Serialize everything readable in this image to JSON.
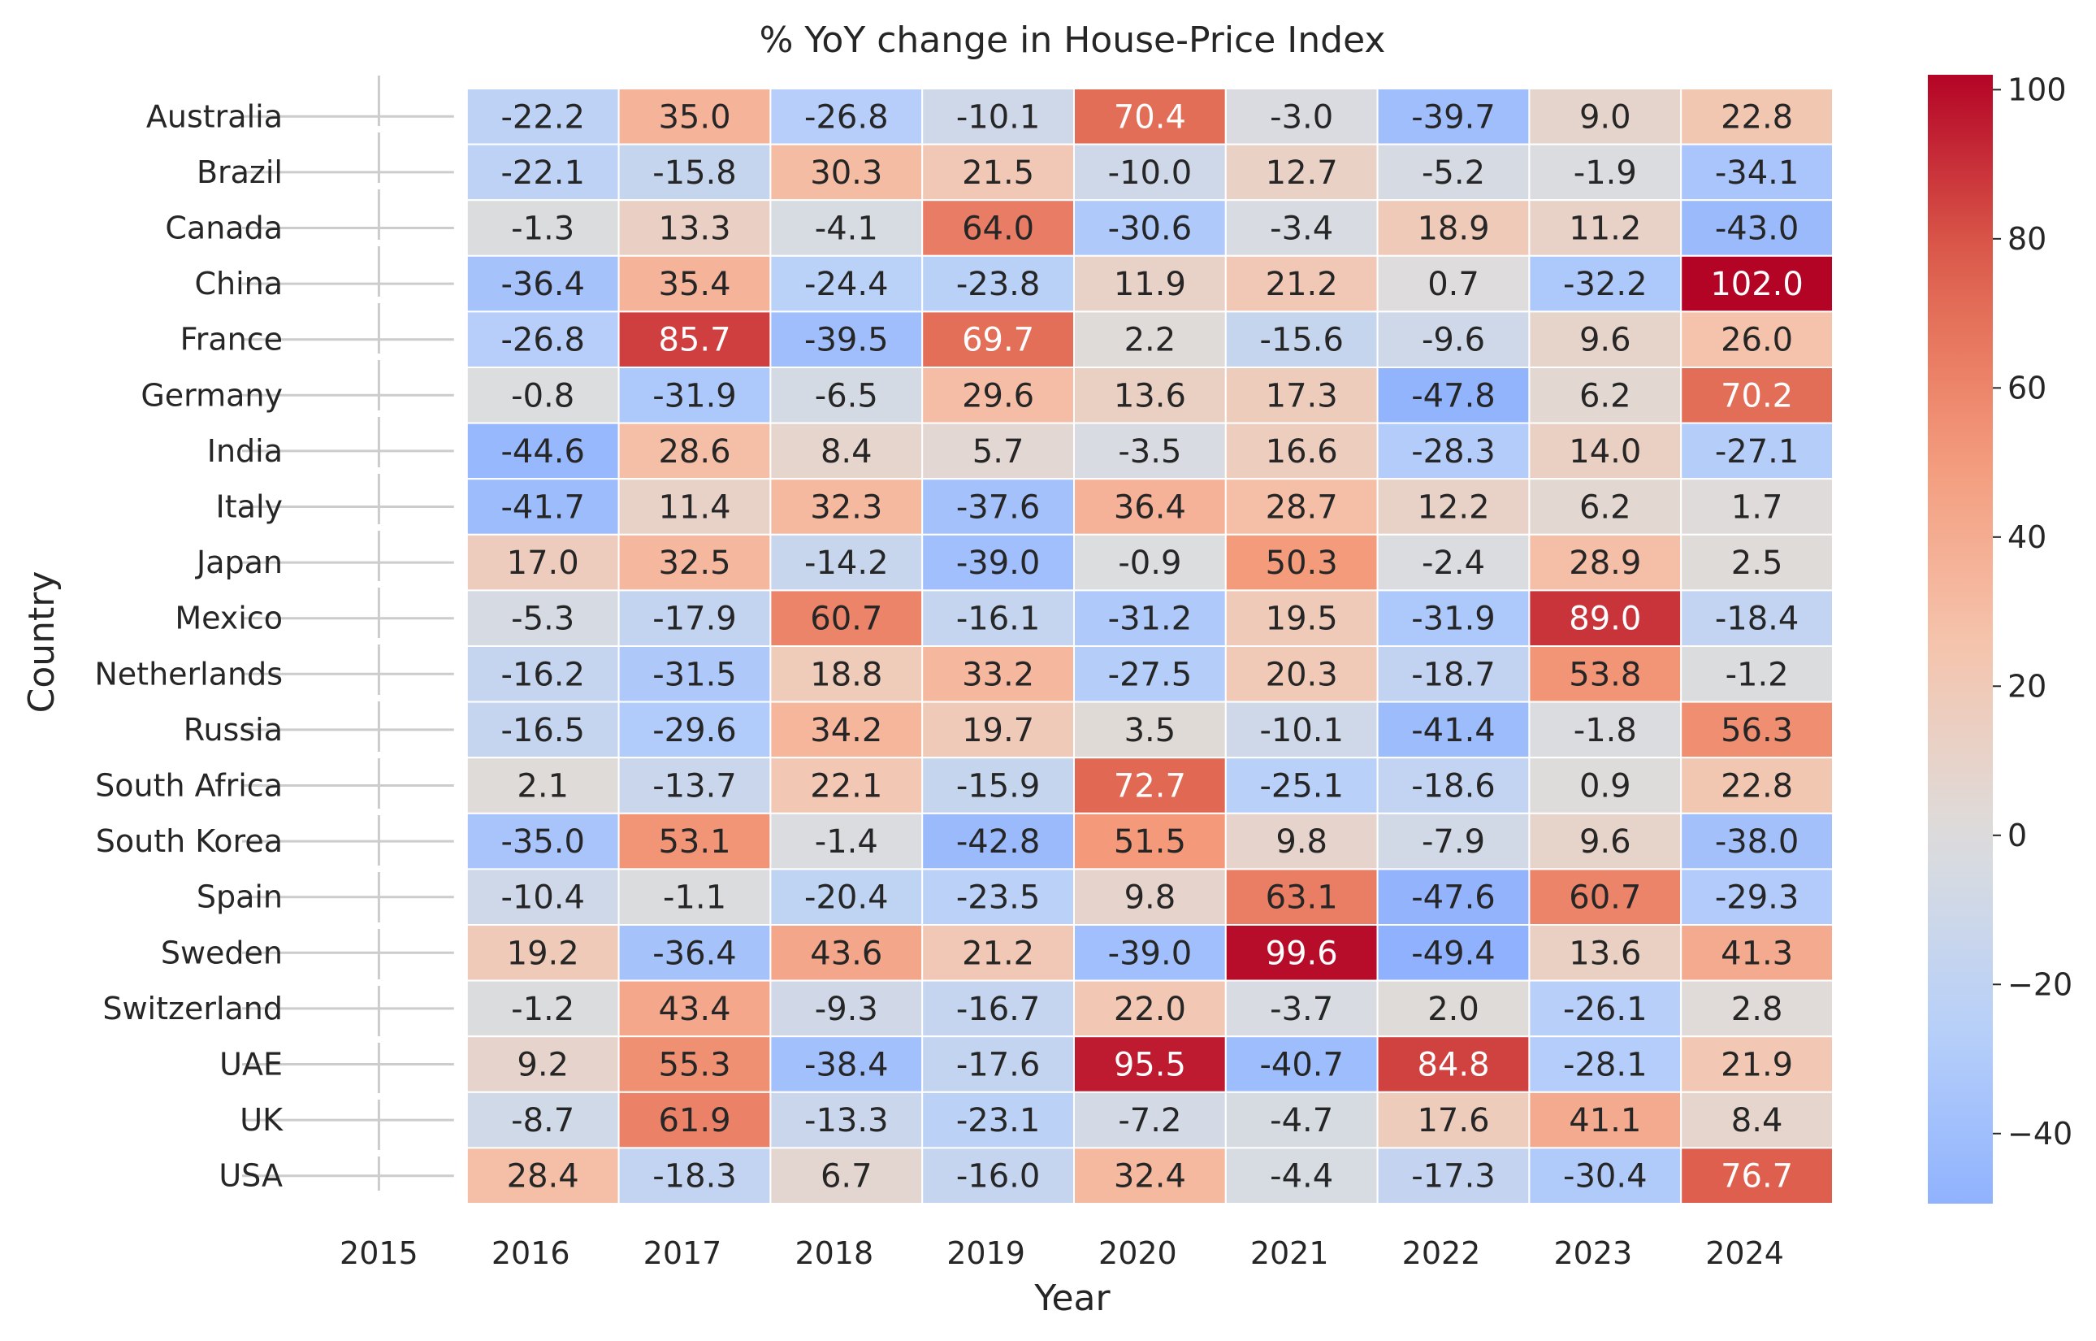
{
  "chart_data": {
    "type": "heatmap",
    "title": "% YoY change in House-Price Index",
    "xlabel": "Year",
    "ylabel": "Country",
    "x": [
      "2015",
      "2016",
      "2017",
      "2018",
      "2019",
      "2020",
      "2021",
      "2022",
      "2023",
      "2024"
    ],
    "y": [
      "Australia",
      "Brazil",
      "Canada",
      "China",
      "France",
      "Germany",
      "India",
      "Italy",
      "Japan",
      "Mexico",
      "Netherlands",
      "Russia",
      "South Africa",
      "South Korea",
      "Spain",
      "Sweden",
      "Switzerland",
      "UAE",
      "UK",
      "USA"
    ],
    "values": [
      [
        null,
        -22.2,
        35.0,
        -26.8,
        -10.1,
        70.4,
        -3.0,
        -39.7,
        9.0,
        22.8
      ],
      [
        null,
        -22.1,
        -15.8,
        30.3,
        21.5,
        -10.0,
        12.7,
        -5.2,
        -1.9,
        -34.1
      ],
      [
        null,
        -1.3,
        13.3,
        -4.1,
        64.0,
        -30.6,
        -3.4,
        18.9,
        11.2,
        -43.0
      ],
      [
        null,
        -36.4,
        35.4,
        -24.4,
        -23.8,
        11.9,
        21.2,
        0.7,
        -32.2,
        102.0
      ],
      [
        null,
        -26.8,
        85.7,
        -39.5,
        69.7,
        2.2,
        -15.6,
        -9.6,
        9.6,
        26.0
      ],
      [
        null,
        -0.8,
        -31.9,
        -6.5,
        29.6,
        13.6,
        17.3,
        -47.8,
        6.2,
        70.2
      ],
      [
        null,
        -44.6,
        28.6,
        8.4,
        5.7,
        -3.5,
        16.6,
        -28.3,
        14.0,
        -27.1
      ],
      [
        null,
        -41.7,
        11.4,
        32.3,
        -37.6,
        36.4,
        28.7,
        12.2,
        6.2,
        1.7
      ],
      [
        null,
        17.0,
        32.5,
        -14.2,
        -39.0,
        -0.9,
        50.3,
        -2.4,
        28.9,
        2.5
      ],
      [
        null,
        -5.3,
        -17.9,
        60.7,
        -16.1,
        -31.2,
        19.5,
        -31.9,
        89.0,
        -18.4
      ],
      [
        null,
        -16.2,
        -31.5,
        18.8,
        33.2,
        -27.5,
        20.3,
        -18.7,
        53.8,
        -1.2
      ],
      [
        null,
        -16.5,
        -29.6,
        34.2,
        19.7,
        3.5,
        -10.1,
        -41.4,
        -1.8,
        56.3
      ],
      [
        null,
        2.1,
        -13.7,
        22.1,
        -15.9,
        72.7,
        -25.1,
        -18.6,
        0.9,
        22.8
      ],
      [
        null,
        -35.0,
        53.1,
        -1.4,
        -42.8,
        51.5,
        9.8,
        -7.9,
        9.6,
        -38.0
      ],
      [
        null,
        -10.4,
        -1.1,
        -20.4,
        -23.5,
        9.8,
        63.1,
        -47.6,
        60.7,
        -29.3
      ],
      [
        null,
        19.2,
        -36.4,
        43.6,
        21.2,
        -39.0,
        99.6,
        -49.4,
        13.6,
        41.3
      ],
      [
        null,
        -1.2,
        43.4,
        -9.3,
        -16.7,
        22.0,
        -3.7,
        2.0,
        -26.1,
        2.8
      ],
      [
        null,
        9.2,
        55.3,
        -38.4,
        -17.6,
        95.5,
        -40.7,
        84.8,
        -28.1,
        21.9
      ],
      [
        null,
        -8.7,
        61.9,
        -13.3,
        -23.1,
        -7.2,
        -4.7,
        17.6,
        41.1,
        8.4
      ],
      [
        null,
        28.4,
        -18.3,
        6.7,
        -16.0,
        32.4,
        -4.4,
        -17.3,
        -30.4,
        76.7
      ]
    ],
    "colorbar": {
      "cmap": "coolwarm",
      "center": 0,
      "range": [
        -49.4,
        102.0
      ],
      "ticks": [
        "−40",
        "−20",
        "0",
        "20",
        "40",
        "60",
        "80",
        "100"
      ],
      "tick_values": [
        -40,
        -20,
        0,
        20,
        40,
        60,
        80,
        100
      ]
    },
    "grid": false,
    "legend": "colorbar-right",
    "colors": {
      "text_dark": "#262626",
      "text_light": "#ffffff",
      "cell_border": "#ffffff",
      "empty_line": "#cccccc"
    }
  }
}
